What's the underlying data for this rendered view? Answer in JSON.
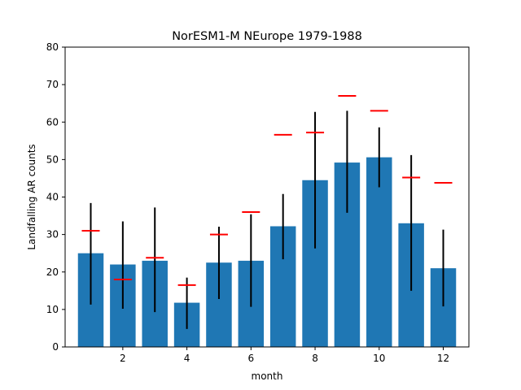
{
  "chart_data": {
    "type": "bar",
    "title": "NorESM1-M NEurope 1979-1988",
    "xlabel": "month",
    "ylabel": "Landfalling AR counts",
    "xlim": [
      0.2,
      12.8
    ],
    "ylim": [
      0,
      80
    ],
    "xticks": [
      2,
      4,
      6,
      8,
      10,
      12
    ],
    "yticks": [
      0,
      10,
      20,
      30,
      40,
      50,
      60,
      70,
      80
    ],
    "grid": false,
    "bar_color": "#1f77b4",
    "errorbar_color": "#000000",
    "reference_color": "#ff0000",
    "series": [
      {
        "x": [
          1,
          2,
          3,
          4,
          5,
          6,
          7,
          8,
          9,
          10,
          11,
          12
        ],
        "values": [
          25,
          22,
          23,
          11.8,
          22.5,
          23,
          32.2,
          44.5,
          49.2,
          50.6,
          33,
          21
        ],
        "error_low": [
          11.3,
          10.2,
          9.3,
          4.8,
          12.8,
          10.7,
          23.4,
          26.3,
          35.8,
          42.6,
          15,
          10.8
        ],
        "error_high": [
          38.4,
          33.5,
          37.2,
          18.5,
          32.1,
          35.4,
          40.8,
          62.7,
          63,
          58.6,
          51.2,
          31.3
        ]
      },
      {
        "x": [
          1,
          2,
          3,
          4,
          5,
          6,
          7,
          8,
          9,
          10,
          11,
          12
        ],
        "values": [
          31,
          18,
          23.8,
          16.5,
          30,
          36,
          56.6,
          57.2,
          67,
          63,
          45.2,
          43.8
        ]
      }
    ]
  }
}
